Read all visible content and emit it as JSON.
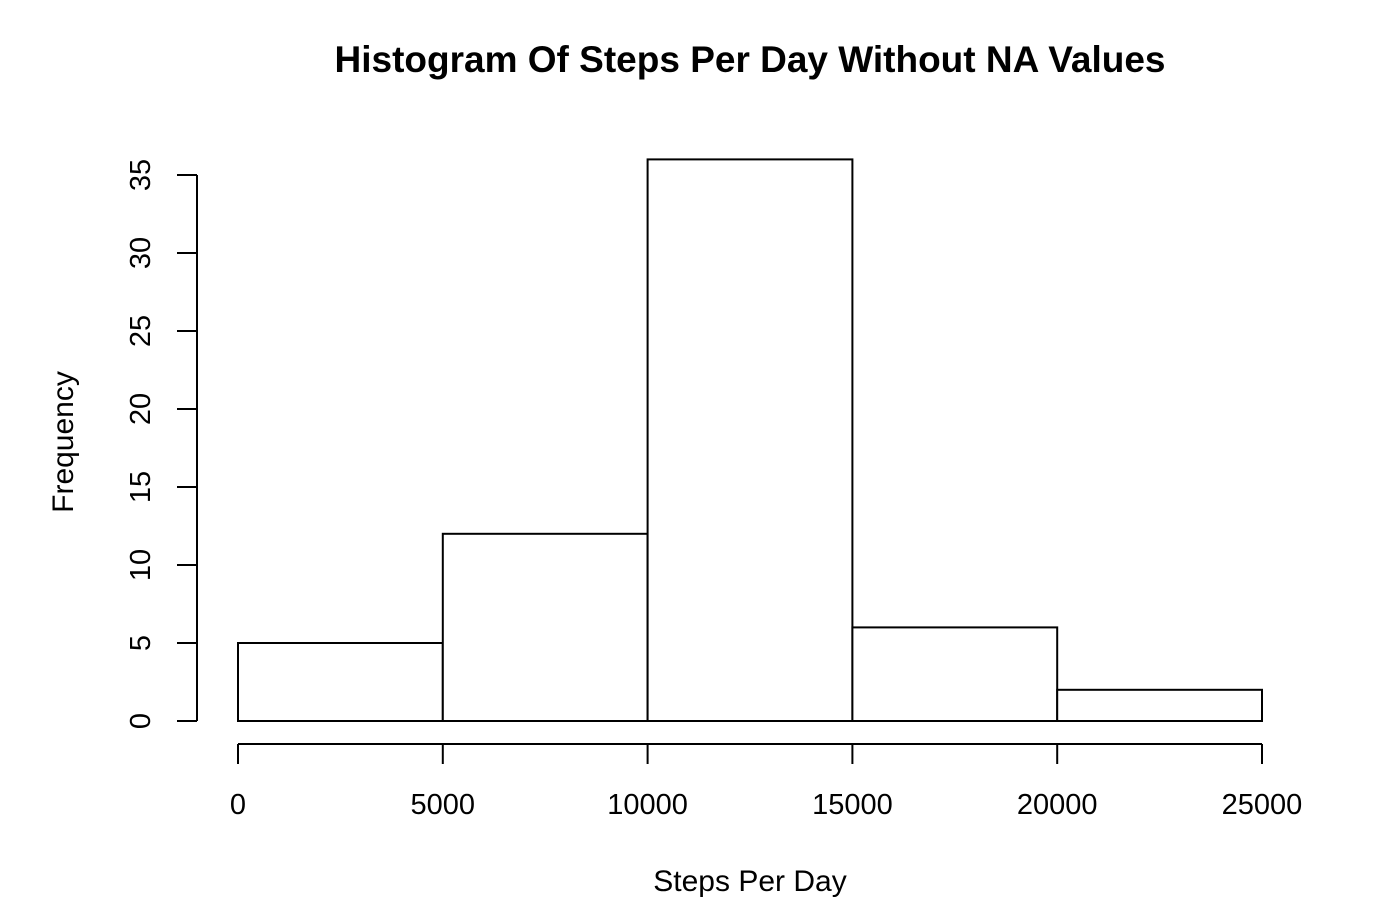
{
  "chart_data": {
    "type": "bar",
    "title": "Histogram Of Steps Per Day Without NA Values",
    "xlabel": "Steps Per Day",
    "ylabel": "Frequency",
    "bins": [
      {
        "start": 0,
        "end": 5000,
        "count": 5
      },
      {
        "start": 5000,
        "end": 10000,
        "count": 12
      },
      {
        "start": 10000,
        "end": 15000,
        "count": 36
      },
      {
        "start": 15000,
        "end": 20000,
        "count": 6
      },
      {
        "start": 20000,
        "end": 25000,
        "count": 2
      }
    ],
    "xlim": [
      0,
      25000
    ],
    "ylim": [
      0,
      35
    ],
    "x_ticks": [
      0,
      5000,
      10000,
      15000,
      20000,
      25000
    ],
    "y_ticks": [
      0,
      5,
      10,
      15,
      20,
      25,
      30,
      35
    ],
    "grid": false,
    "bar_fill": "#ffffff",
    "bar_stroke": "#000000"
  }
}
